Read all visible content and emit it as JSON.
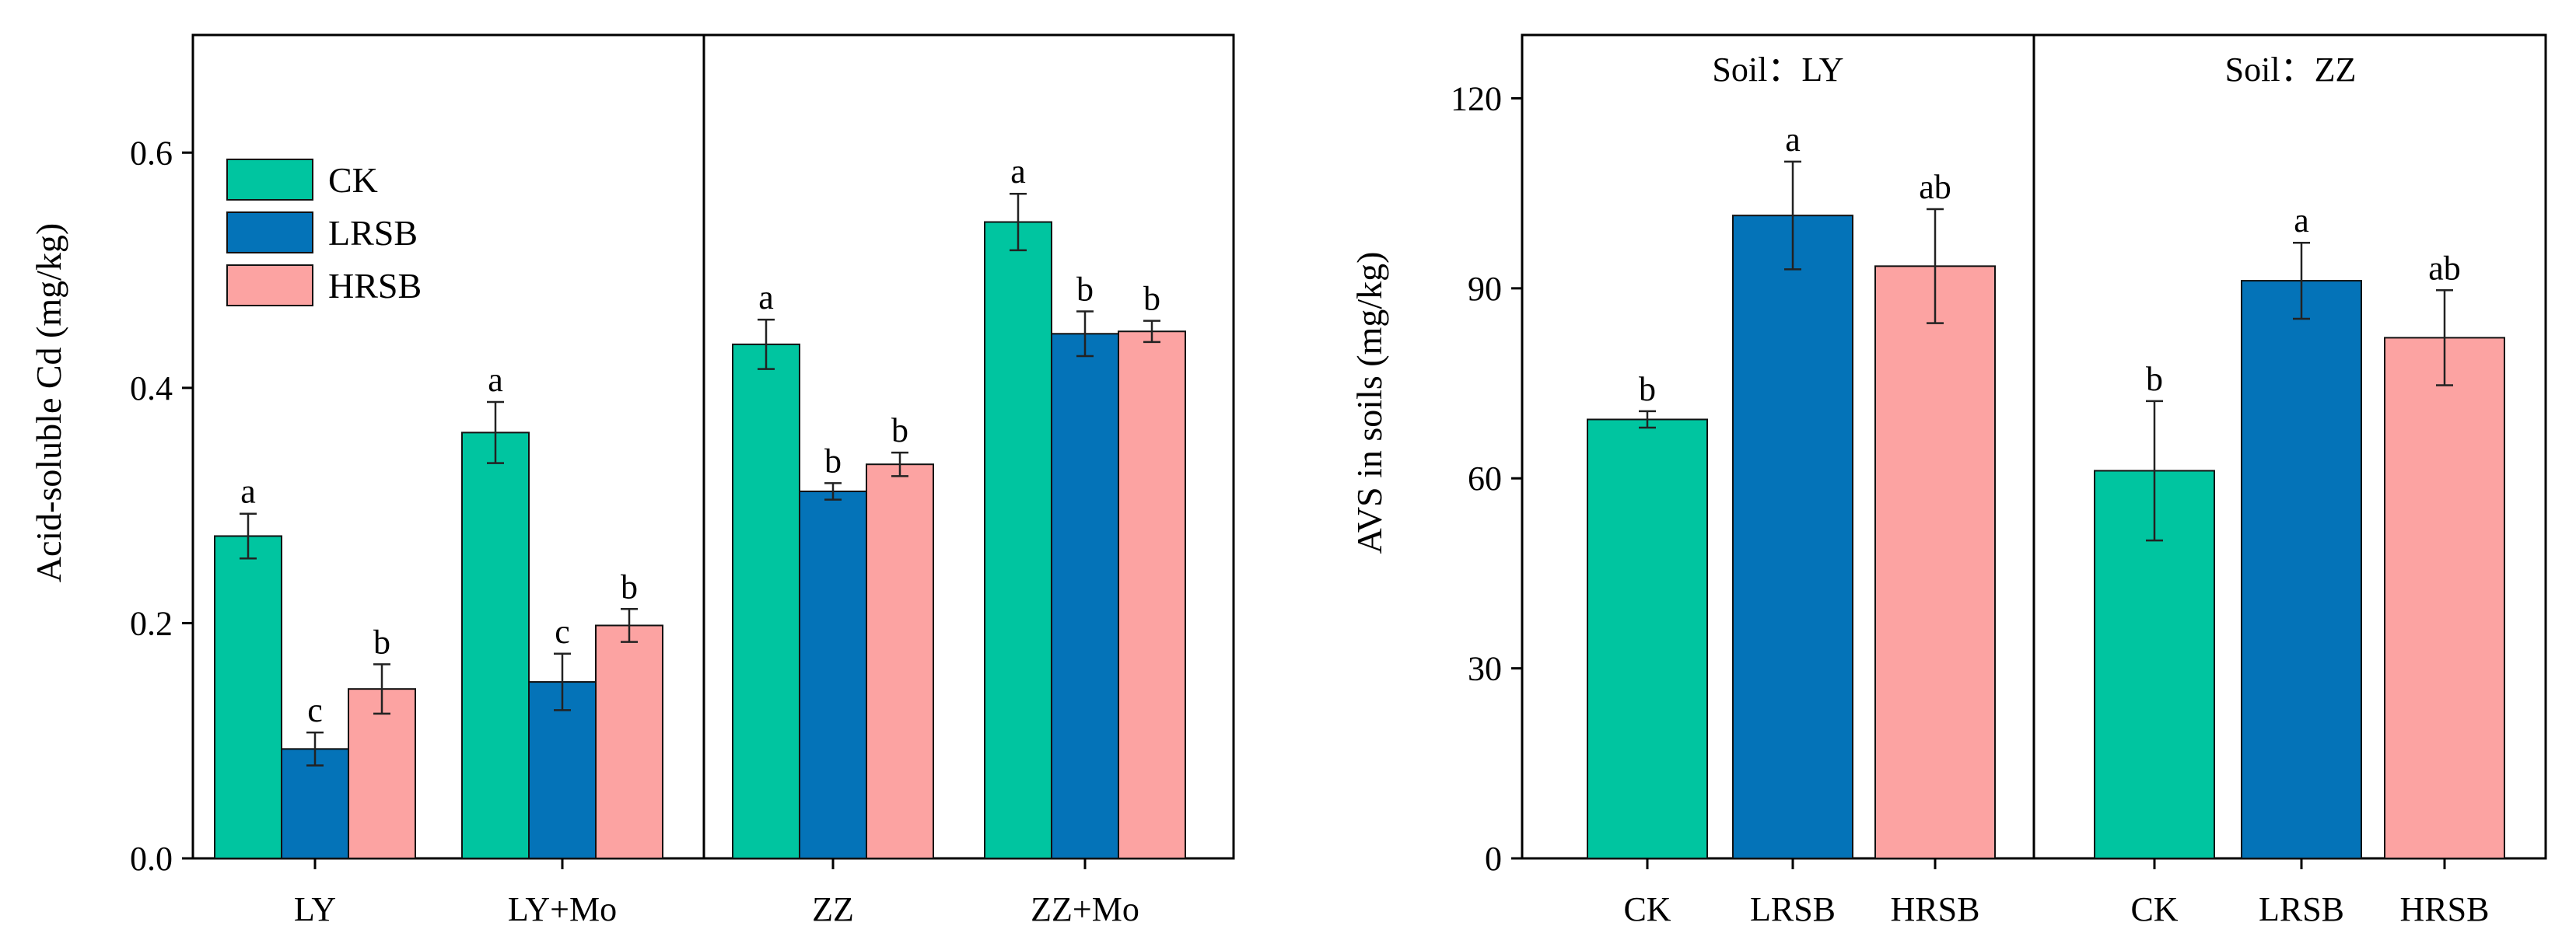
{
  "colors": {
    "CK": "#00c5a0",
    "LRSB": "#0473b8",
    "HRSB": "#fca3a2"
  },
  "chart_data": [
    {
      "type": "bar",
      "ylabel": "Acid-soluble Cd (mg/kg)",
      "ylim": [
        0,
        0.7
      ],
      "yticks": [
        0.0,
        0.2,
        0.4,
        0.6
      ],
      "ytick_labels": [
        "0.0",
        "0.2",
        "0.4",
        "0.6"
      ],
      "categories": [
        "LY",
        "LY+Mo",
        "ZZ",
        "ZZ+Mo"
      ],
      "legend": [
        "CK",
        "LRSB",
        "HRSB"
      ],
      "legend_position": "top-left",
      "separator_after_category": 1,
      "series": [
        {
          "name": "CK",
          "values": [
            0.274,
            0.362,
            0.437,
            0.541
          ],
          "errors": [
            0.019,
            0.026,
            0.021,
            0.024
          ],
          "letters": [
            "a",
            "a",
            "a",
            "a"
          ]
        },
        {
          "name": "LRSB",
          "values": [
            0.093,
            0.15,
            0.312,
            0.446
          ],
          "errors": [
            0.014,
            0.024,
            0.007,
            0.019
          ],
          "letters": [
            "c",
            "c",
            "b",
            "b"
          ]
        },
        {
          "name": "HRSB",
          "values": [
            0.144,
            0.198,
            0.335,
            0.448
          ],
          "errors": [
            0.021,
            0.014,
            0.01,
            0.009
          ],
          "letters": [
            "b",
            "b",
            "b",
            "b"
          ]
        }
      ]
    },
    {
      "type": "bar",
      "ylabel": "AVS in soils (mg/kg)",
      "ylim": [
        0,
        130
      ],
      "yticks": [
        0,
        30,
        60,
        90,
        120
      ],
      "ytick_labels": [
        "0",
        "30",
        "60",
        "90",
        "120"
      ],
      "panels": [
        {
          "title": "Soil：LY",
          "categories": [
            "CK",
            "LRSB",
            "HRSB"
          ],
          "values": [
            69.3,
            101.5,
            93.5
          ],
          "errors": [
            1.3,
            8.5,
            9.0
          ],
          "letters": [
            "b",
            "a",
            "ab"
          ]
        },
        {
          "title": "Soil：ZZ",
          "categories": [
            "CK",
            "LRSB",
            "HRSB"
          ],
          "values": [
            61.2,
            91.2,
            82.2
          ],
          "errors": [
            11.0,
            6.0,
            7.5
          ],
          "letters": [
            "b",
            "a",
            "ab"
          ]
        }
      ]
    }
  ]
}
